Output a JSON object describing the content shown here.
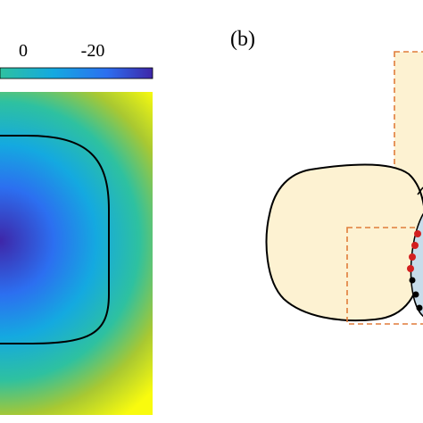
{
  "panel_b": {
    "label": "(b)",
    "region_fill": "#fdf2d2",
    "inner_fill": "#c7dcea",
    "dashed_box_color": "#e07c3a",
    "red_marker_color": "#d31f1f",
    "black_marker_color": "#000000"
  },
  "chart_data": {
    "type": "heatmap",
    "title": "",
    "colorbar": {
      "tick_labels": [
        "0",
        "-20"
      ],
      "colormap": "parula",
      "colors": [
        "#f9fb0e",
        "#33b7a0",
        "#1086e8",
        "#3e26a8"
      ]
    },
    "contour": {
      "color": "#000000",
      "shape": "rounded-square"
    },
    "minimum_location": "left-center"
  }
}
